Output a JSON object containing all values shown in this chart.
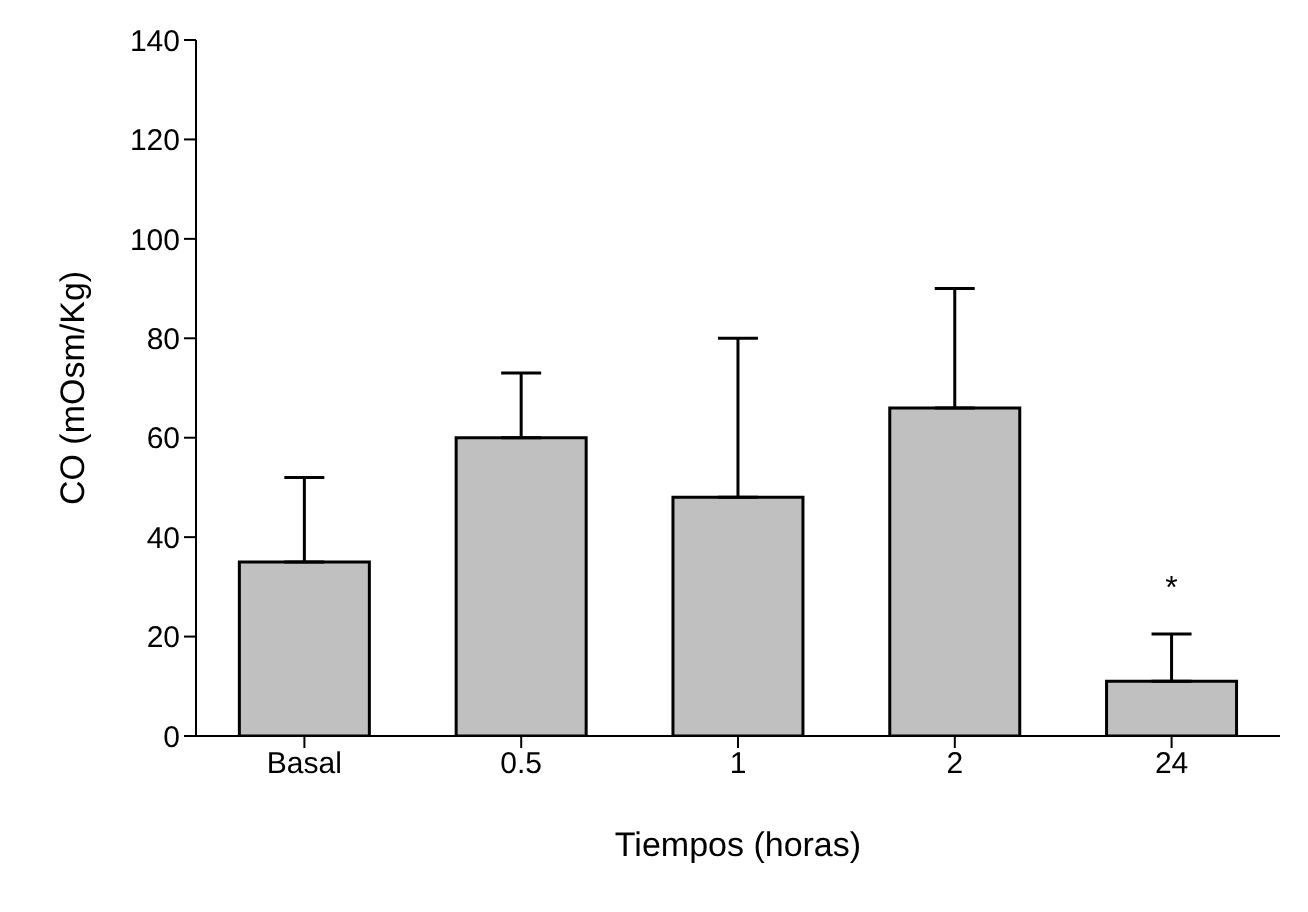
{
  "chart_data": {
    "type": "bar",
    "xlabel": "Tiempos (horas)",
    "ylabel": "CO (mOsm/Kg)",
    "categories": [
      "Basal",
      "0.5",
      "1",
      "2",
      "24"
    ],
    "values": [
      35,
      60,
      48,
      66,
      11
    ],
    "errors": [
      [
        35,
        52
      ],
      [
        60,
        73
      ],
      [
        48,
        80
      ],
      [
        66,
        90
      ],
      [
        11,
        20.5
      ]
    ],
    "color": "#c0c0c0",
    "ylim": [
      0,
      140
    ],
    "yticks": [
      0,
      20,
      40,
      60,
      80,
      100,
      120,
      140
    ],
    "annotations": [
      "*"
    ],
    "grid": false,
    "legend": false
  }
}
